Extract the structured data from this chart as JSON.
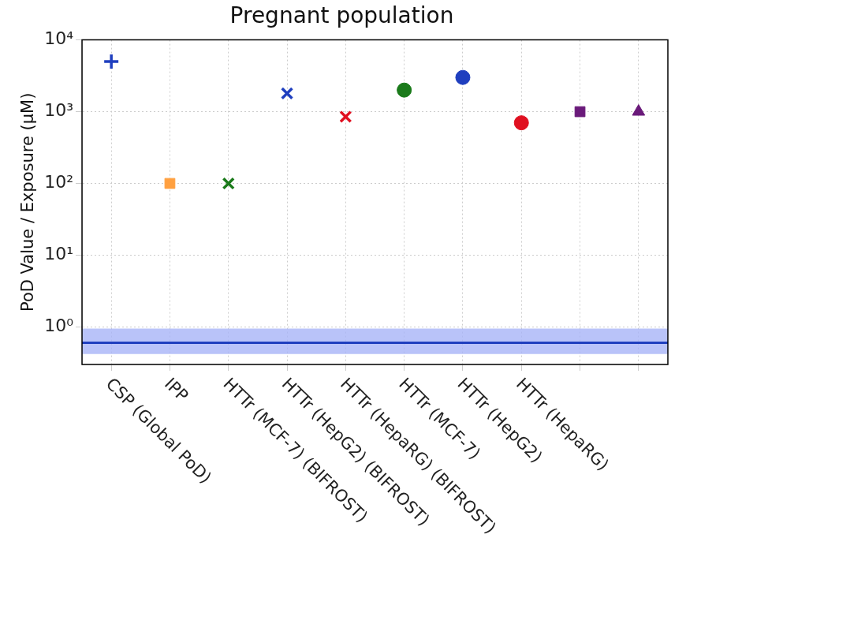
{
  "chart_data": {
    "type": "scatter",
    "title": "Pregnant population",
    "ylabel": "PoD Value / Exposure (μM)",
    "categories": [
      "CSP (Global PoD)",
      "IPP",
      "HTTr (MCF-7) (BIFROST)",
      "HTTr (HepG2) (BIFROST)",
      "HTTr (HepaRG) (BIFROST)",
      "HTTr (MCF-7)",
      "HTTr (HepG2)",
      "HTTr (HepaRG)",
      null,
      null
    ],
    "series": [
      {
        "color": "#1f3fbf",
        "marker": "cross",
        "values": [
          5000,
          null,
          null,
          null,
          null,
          null,
          null,
          null,
          null,
          null
        ]
      },
      {
        "color": "#ffa040",
        "marker": "square",
        "values": [
          null,
          100,
          null,
          null,
          null,
          null,
          null,
          null,
          null,
          null
        ]
      },
      {
        "color": "#1a7a1a",
        "marker": "x",
        "values": [
          null,
          null,
          100,
          null,
          null,
          null,
          null,
          null,
          null,
          null
        ]
      },
      {
        "color": "#1f3fbf",
        "marker": "x",
        "values": [
          null,
          null,
          null,
          1800,
          null,
          null,
          null,
          null,
          null,
          null
        ]
      },
      {
        "color": "#e01020",
        "marker": "x",
        "values": [
          null,
          null,
          null,
          null,
          850,
          null,
          null,
          null,
          null,
          null
        ]
      },
      {
        "color": "#1a7a1a",
        "marker": "circle",
        "values": [
          null,
          null,
          null,
          null,
          null,
          2000,
          null,
          null,
          null,
          null
        ]
      },
      {
        "color": "#1f3fbf",
        "marker": "circle",
        "values": [
          null,
          null,
          null,
          null,
          null,
          null,
          3000,
          null,
          null,
          null
        ]
      },
      {
        "color": "#e01020",
        "marker": "circle",
        "values": [
          null,
          null,
          null,
          null,
          null,
          null,
          null,
          700,
          null,
          null
        ]
      },
      {
        "color": "#6a1a7a",
        "marker": "square",
        "values": [
          null,
          null,
          null,
          null,
          null,
          null,
          null,
          null,
          1000,
          null
        ]
      },
      {
        "color": "#6a1a7a",
        "marker": "triangle",
        "values": [
          null,
          null,
          null,
          null,
          null,
          null,
          null,
          null,
          null,
          1000
        ]
      }
    ],
    "log": "y",
    "ylim": [
      0.3,
      10000
    ],
    "yticks": [
      {
        "value": 1,
        "label": "10⁰"
      },
      {
        "value": 10,
        "label": "10¹"
      },
      {
        "value": 100,
        "label": "10²"
      },
      {
        "value": 1000,
        "label": "10³"
      },
      {
        "value": 10000,
        "label": "10⁴"
      }
    ],
    "ref_lines": [
      {
        "axis": "y",
        "value": 0.6,
        "color": "#1f3fbf"
      }
    ],
    "bands": [
      {
        "axis": "y",
        "from": 0.42,
        "to": 0.95,
        "color": "#a8b4f8"
      }
    ],
    "grid": true,
    "legend": false
  }
}
